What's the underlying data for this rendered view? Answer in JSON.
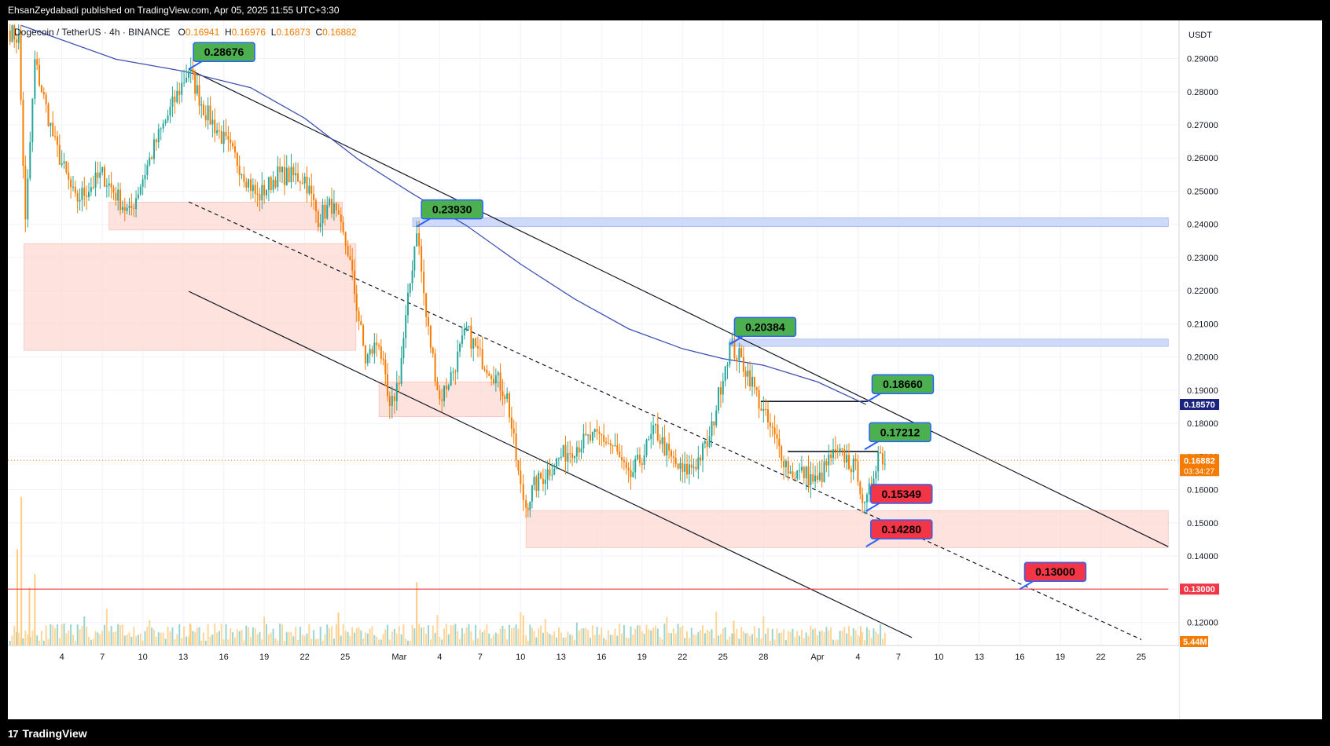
{
  "header": {
    "published": "EhsanZeydabadi published on TradingView.com, Apr 05, 2025 11:55 UTC+3:30"
  },
  "legend": {
    "symbol": "Dogecoin / TetherUS · 4h · BINANCE",
    "o_label": "O",
    "o": "0.16941",
    "h_label": "H",
    "h": "0.16976",
    "l_label": "L",
    "l": "0.16873",
    "c_label": "C",
    "c": "0.16882"
  },
  "footer": {
    "brand": "TradingView",
    "logo": "17"
  },
  "colors": {
    "up": "#26a69a",
    "down": "#f57c00",
    "ma": "#3f51b5",
    "zone_red": "#fdd5cf",
    "zone_blue": "#c5d3f7",
    "label_green": "#4caf50",
    "label_red": "#f23645"
  },
  "chart_data": {
    "type": "candlestick",
    "currency": "USDT",
    "ylim": [
      0.113,
      0.3015
    ],
    "y_ticks": [
      0.29,
      0.28,
      0.27,
      0.26,
      0.25,
      0.24,
      0.23,
      0.22,
      0.21,
      0.2,
      0.19,
      0.18,
      0.17,
      0.16,
      0.15,
      0.14,
      0.13,
      0.12
    ],
    "y_tick_labels": [
      "0.29000",
      "0.28000",
      "0.27000",
      "0.26000",
      "0.25000",
      "0.24000",
      "0.23000",
      "0.22000",
      "0.21000",
      "0.20000",
      "0.19000",
      "0.18000",
      "0.17000",
      "0.16000",
      "0.15000",
      "0.14000",
      "0.13000",
      "0.12000"
    ],
    "x_tick_labels": [
      "4",
      "7",
      "10",
      "13",
      "16",
      "19",
      "22",
      "25",
      "Mar",
      "4",
      "7",
      "10",
      "13",
      "16",
      "19",
      "22",
      "25",
      "28",
      "Apr",
      "4",
      "7",
      "10",
      "13",
      "16",
      "19",
      "22",
      "25"
    ],
    "x_tick_days": [
      4,
      7,
      10,
      13,
      16,
      19,
      22,
      25,
      29,
      32,
      35,
      38,
      41,
      44,
      47,
      50,
      53,
      56,
      60,
      63,
      66,
      69,
      72,
      75,
      78,
      81,
      84
    ],
    "current_price": "0.16882",
    "countdown": "03:34:27",
    "ma_value": "0.18570",
    "volume_value": "5.44M",
    "level_label": "0.13000",
    "annotations": [
      {
        "text": "0.28676",
        "price": 0.28676,
        "day": 13.4,
        "color": "green"
      },
      {
        "text": "0.23930",
        "price": 0.2393,
        "day": 30.3,
        "color": "green"
      },
      {
        "text": "0.20384",
        "price": 0.20384,
        "day": 53.5,
        "color": "green"
      },
      {
        "text": "0.18660",
        "price": 0.1866,
        "day": 63.7,
        "color": "green"
      },
      {
        "text": "0.17212",
        "price": 0.17212,
        "day": 63.5,
        "color": "green"
      },
      {
        "text": "0.15349",
        "price": 0.15349,
        "day": 63.6,
        "color": "red"
      },
      {
        "text": "0.14280",
        "price": 0.1428,
        "day": 63.6,
        "color": "red"
      },
      {
        "text": "0.13000",
        "price": 0.13,
        "day": 75.0,
        "color": "red"
      }
    ],
    "zones": [
      {
        "type": "supply",
        "from_day": 7.5,
        "to_day": 24.8,
        "top": 0.2467,
        "bottom": 0.2383
      },
      {
        "type": "supply",
        "from_day": 1.2,
        "to_day": 25.8,
        "top": 0.2342,
        "bottom": 0.202
      },
      {
        "type": "supply",
        "from_day": 27.5,
        "to_day": 36.8,
        "top": 0.1925,
        "bottom": 0.182
      },
      {
        "type": "demand",
        "from_day": 38.4,
        "to_day": 86.0,
        "top": 0.1537,
        "bottom": 0.1425
      },
      {
        "type": "resistance",
        "from_day": 30.0,
        "to_day": 86.0,
        "top": 0.242,
        "bottom": 0.2393
      },
      {
        "type": "resistance",
        "from_day": 53.5,
        "to_day": 86.0,
        "top": 0.2054,
        "bottom": 0.2032
      }
    ],
    "trendlines": [
      {
        "style": "solid",
        "from": [
          13.4,
          0.2868
        ],
        "to": [
          86.0,
          0.1428
        ]
      },
      {
        "style": "solid",
        "from": [
          13.4,
          0.2198
        ],
        "to": [
          67.0,
          0.1154
        ]
      },
      {
        "style": "dashed",
        "from": [
          13.4,
          0.2468
        ],
        "to": [
          84.0,
          0.1148
        ]
      }
    ],
    "horizontal_levels": [
      {
        "price": 0.13,
        "from_day": 0,
        "to_day": 86.0
      },
      {
        "price": 0.1866,
        "from_day": 55.8,
        "to_day": 63.7
      },
      {
        "price": 0.1715,
        "from_day": 57.8,
        "to_day": 64.5
      }
    ],
    "ma_points": [
      [
        1,
        0.3
      ],
      [
        8,
        0.2898
      ],
      [
        13,
        0.2862
      ],
      [
        18,
        0.2812
      ],
      [
        22,
        0.272
      ],
      [
        26,
        0.2595
      ],
      [
        30,
        0.2492
      ],
      [
        34,
        0.2396
      ],
      [
        38,
        0.228
      ],
      [
        42,
        0.2175
      ],
      [
        46,
        0.2085
      ],
      [
        50,
        0.2025
      ],
      [
        53,
        0.1995
      ],
      [
        56,
        0.1975
      ],
      [
        60,
        0.1925
      ],
      [
        63.6,
        0.1857
      ]
    ],
    "anchors": [
      [
        0,
        0.2985
      ],
      [
        0.8,
        0.296
      ],
      [
        1.3,
        0.24
      ],
      [
        2,
        0.289
      ],
      [
        3.5,
        0.264
      ],
      [
        5,
        0.247
      ],
      [
        7,
        0.255
      ],
      [
        9,
        0.243
      ],
      [
        11,
        0.265
      ],
      [
        13.4,
        0.2868
      ],
      [
        14.5,
        0.275
      ],
      [
        17,
        0.259
      ],
      [
        18.5,
        0.248
      ],
      [
        20,
        0.255
      ],
      [
        22,
        0.254
      ],
      [
        23,
        0.242
      ],
      [
        24,
        0.246
      ],
      [
        25.2,
        0.232
      ],
      [
        26.5,
        0.199
      ],
      [
        27.5,
        0.205
      ],
      [
        28.3,
        0.183
      ],
      [
        29,
        0.194
      ],
      [
        30.3,
        0.2393
      ],
      [
        31,
        0.212
      ],
      [
        32,
        0.187
      ],
      [
        33,
        0.196
      ],
      [
        34,
        0.208
      ],
      [
        35,
        0.2
      ],
      [
        36,
        0.195
      ],
      [
        37,
        0.188
      ],
      [
        38,
        0.16
      ],
      [
        38.4,
        0.155
      ],
      [
        39,
        0.161
      ],
      [
        41,
        0.17
      ],
      [
        42,
        0.173
      ],
      [
        43,
        0.175
      ],
      [
        44,
        0.176
      ],
      [
        45,
        0.172
      ],
      [
        46,
        0.163
      ],
      [
        47,
        0.17
      ],
      [
        48,
        0.178
      ],
      [
        49,
        0.17
      ],
      [
        50,
        0.165
      ],
      [
        51,
        0.168
      ],
      [
        52,
        0.175
      ],
      [
        53,
        0.195
      ],
      [
        53.5,
        0.2033
      ],
      [
        54.2,
        0.2
      ],
      [
        55,
        0.194
      ],
      [
        56,
        0.183
      ],
      [
        57,
        0.174
      ],
      [
        58,
        0.165
      ],
      [
        59,
        0.165
      ],
      [
        60,
        0.162
      ],
      [
        61,
        0.17
      ],
      [
        62,
        0.17
      ],
      [
        63,
        0.165
      ],
      [
        63.5,
        0.1535
      ],
      [
        64,
        0.162
      ],
      [
        64.5,
        0.1715
      ],
      [
        65,
        0.1689
      ]
    ],
    "volume_spikes": [
      [
        0.7,
        0.35
      ],
      [
        1.0,
        0.54
      ],
      [
        1.6,
        0.21
      ],
      [
        2.0,
        0.26
      ],
      [
        30.3,
        0.23
      ],
      [
        24.5,
        0.12
      ],
      [
        13.5,
        0.08
      ],
      [
        38.2,
        0.11
      ],
      [
        53.8,
        0.09
      ],
      [
        63.2,
        0.07
      ]
    ]
  }
}
